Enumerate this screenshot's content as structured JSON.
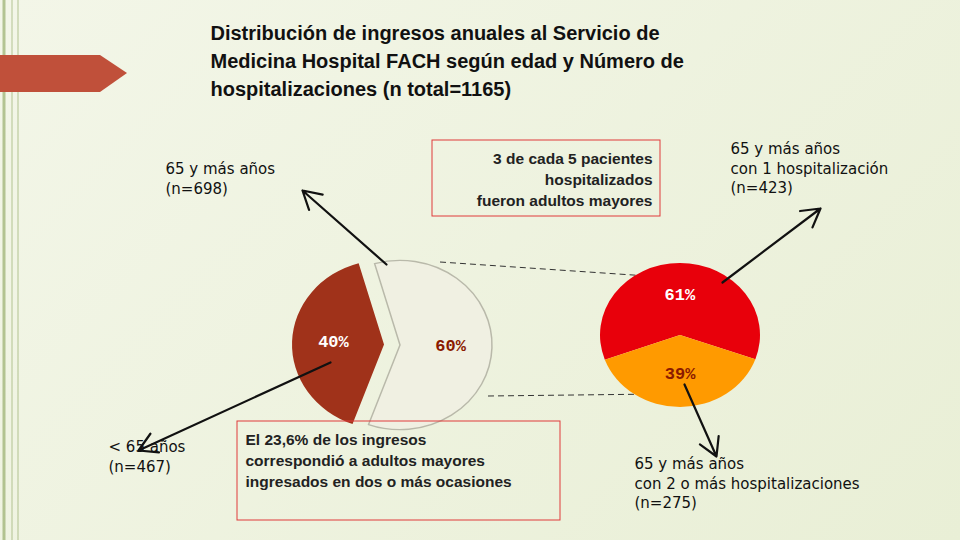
{
  "chart_data": [
    {
      "type": "pie",
      "title": "Distribución de ingresos anuales al Servicio de\nMedicina Hospital FACH según edad y Número de\nhospitalizaciones (n total=1165)",
      "categories": [
        "< 65 años\n(n=467)",
        "65 y más años\n(n=698)"
      ],
      "values": [
        40,
        60
      ],
      "value_labels": [
        "40%",
        "60%"
      ],
      "colors": [
        "#a0321a",
        "#f0f0e2"
      ],
      "data_labels": true,
      "annotations": [
        "3 de cada 5 pacientes\nhospitalizados\nfueron adultos mayores",
        "El 23,6% de los ingresos\ncorrespondió a adultos mayores\ningresados en dos o más ocasiones"
      ]
    },
    {
      "type": "pie",
      "categories": [
        "65 y más años\ncon 1 hospitalización\n(n=423)",
        "65 y más años\ncon 2 o más hospitalizaciones\n(n=275)"
      ],
      "values": [
        61,
        39
      ],
      "value_labels": [
        "61%",
        "39%"
      ],
      "colors": [
        "#e8000b",
        "#ff9a00"
      ],
      "data_labels": true
    }
  ]
}
